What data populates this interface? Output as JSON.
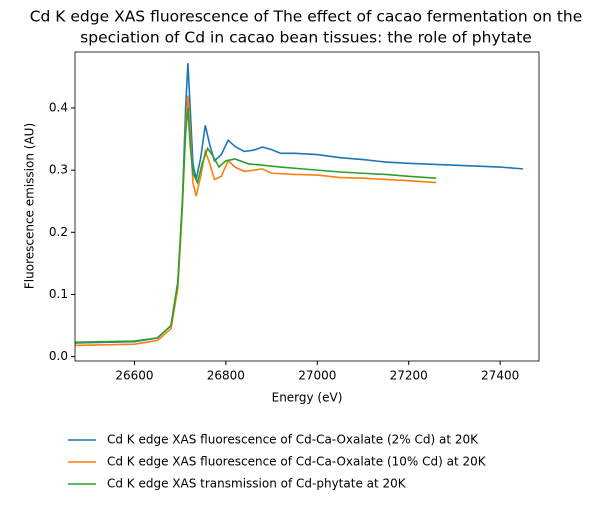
{
  "chart_data": {
    "type": "line",
    "title": [
      "Cd K edge XAS fluorescence of The effect of cacao fermentation on the",
      "speciation of Cd in cacao bean tissues: the role of phytate"
    ],
    "xlabel": "Energy (eV)",
    "ylabel": "Fluorescence emission (AU)",
    "xlim": [
      26470,
      27485
    ],
    "ylim": [
      -0.007,
      0.49
    ],
    "xticks": [
      26600,
      26800,
      27000,
      27200,
      27400
    ],
    "yticks": [
      {
        "value": 0,
        "label": "0.0"
      },
      0.1,
      0.2,
      0.3,
      0.4
    ],
    "grid": false,
    "legend": "below",
    "series": [
      {
        "name": "Cd K edge XAS fluorescence of Cd-Ca-Oxalate (2% Cd) at 20K",
        "color": "#1f77b4",
        "x": [
          26470,
          26600,
          26650,
          26680,
          26695,
          26705,
          26712,
          26717,
          26722,
          26728,
          26735,
          26745,
          26755,
          26765,
          26775,
          26790,
          26805,
          26820,
          26840,
          26860,
          26880,
          26900,
          26920,
          26950,
          27000,
          27050,
          27100,
          27150,
          27200,
          27300,
          27400,
          27450
        ],
        "values": [
          0.022,
          0.024,
          0.03,
          0.05,
          0.12,
          0.25,
          0.4,
          0.472,
          0.4,
          0.31,
          0.285,
          0.32,
          0.372,
          0.34,
          0.315,
          0.325,
          0.348,
          0.338,
          0.33,
          0.332,
          0.337,
          0.333,
          0.327,
          0.327,
          0.325,
          0.32,
          0.317,
          0.313,
          0.311,
          0.308,
          0.305,
          0.302
        ]
      },
      {
        "name": "Cd K edge XAS fluorescence of Cd-Ca-Oxalate (10% Cd) at 20K",
        "color": "#ff7f0e",
        "x": [
          26470,
          26600,
          26650,
          26680,
          26695,
          26705,
          26712,
          26717,
          26722,
          26728,
          26735,
          26745,
          26755,
          26765,
          26775,
          26790,
          26805,
          26820,
          26840,
          26880,
          26900,
          26950,
          27000,
          27050,
          27100,
          27150,
          27200,
          27260
        ],
        "values": [
          0.018,
          0.02,
          0.026,
          0.045,
          0.11,
          0.24,
          0.37,
          0.42,
          0.36,
          0.28,
          0.258,
          0.29,
          0.33,
          0.31,
          0.285,
          0.29,
          0.315,
          0.305,
          0.298,
          0.302,
          0.295,
          0.293,
          0.292,
          0.288,
          0.287,
          0.285,
          0.283,
          0.28
        ]
      },
      {
        "name": "Cd K edge XAS transmission of Cd-phytate at 20K",
        "color": "#2ca02c",
        "x": [
          26470,
          26600,
          26650,
          26680,
          26695,
          26705,
          26712,
          26717,
          26722,
          26728,
          26738,
          26748,
          26760,
          26770,
          26785,
          26800,
          26820,
          26850,
          26880,
          26920,
          26950,
          27000,
          27050,
          27100,
          27150,
          27200,
          27260
        ],
        "values": [
          0.023,
          0.025,
          0.03,
          0.05,
          0.12,
          0.25,
          0.36,
          0.4,
          0.34,
          0.295,
          0.28,
          0.31,
          0.335,
          0.325,
          0.305,
          0.315,
          0.318,
          0.31,
          0.308,
          0.305,
          0.303,
          0.3,
          0.297,
          0.295,
          0.293,
          0.29,
          0.287
        ]
      }
    ]
  }
}
